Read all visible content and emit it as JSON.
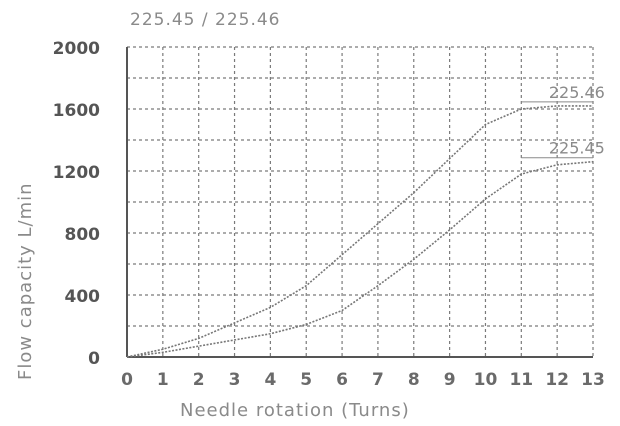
{
  "chart_data": {
    "type": "line",
    "title": "225.45 / 225.46",
    "xlabel": "Needle rotation (Turns)",
    "ylabel": "Flow capacity   L/min",
    "xlim": [
      0,
      13
    ],
    "ylim": [
      0,
      2000
    ],
    "x_ticks": [
      "0",
      "1",
      "2",
      "3",
      "4",
      "5",
      "6",
      "7",
      "8",
      "9",
      "10",
      "11",
      "12",
      "13"
    ],
    "y_ticks": [
      "0",
      "400",
      "800",
      "1200",
      "1600",
      "2000"
    ],
    "grid": true,
    "series": [
      {
        "name": "225.46",
        "x": [
          0,
          1,
          2,
          3,
          4,
          5,
          6,
          7,
          8,
          9,
          10,
          11,
          12,
          13
        ],
        "values": [
          0,
          50,
          120,
          220,
          320,
          460,
          660,
          860,
          1060,
          1280,
          1500,
          1600,
          1620,
          1620
        ]
      },
      {
        "name": "225.45",
        "x": [
          0,
          1,
          2,
          3,
          4,
          5,
          6,
          7,
          8,
          9,
          10,
          11,
          12,
          13
        ],
        "values": [
          0,
          30,
          70,
          110,
          150,
          210,
          300,
          460,
          630,
          820,
          1020,
          1180,
          1240,
          1260
        ]
      }
    ]
  }
}
